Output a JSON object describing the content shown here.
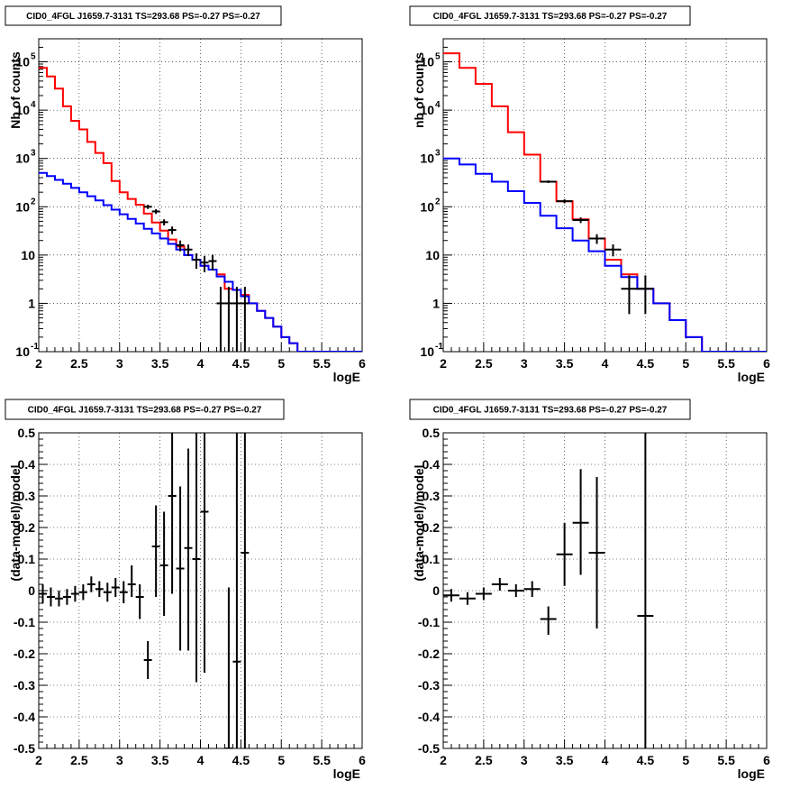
{
  "chart_data": [
    {
      "type": "step",
      "title": "CID0_4FGL J1659.7-3131 TS=293.68 PS=-0.27 PS=-0.27",
      "xlabel": "logE",
      "ylabel": "Nb of counts",
      "xlim": [
        2,
        6
      ],
      "ylim": [
        0.1,
        300000
      ],
      "yscale": "log",
      "grid": true,
      "x_ticks": [
        "2",
        "2.5",
        "3",
        "3.5",
        "4",
        "4.5",
        "5",
        "5.5",
        "6"
      ],
      "y_ticks": [
        {
          "base": "10",
          "exp": "5"
        },
        {
          "base": "10",
          "exp": "4"
        },
        {
          "base": "10",
          "exp": "3"
        },
        {
          "base": "10",
          "exp": "2"
        },
        {
          "base": "10",
          "exp": ""
        },
        {
          "base": "1",
          "exp": ""
        },
        {
          "base": "10",
          "exp": "-1"
        }
      ],
      "bin_edges": [
        2.0,
        2.1,
        2.2,
        2.3,
        2.4,
        2.5,
        2.6,
        2.7,
        2.8,
        2.9,
        3.0,
        3.1,
        3.2,
        3.3,
        3.4,
        3.5,
        3.6,
        3.7,
        3.8,
        3.9,
        4.0,
        4.1,
        4.2,
        4.3,
        4.4,
        4.5,
        4.6,
        4.7,
        4.8,
        4.9,
        5.0,
        5.1,
        5.2,
        5.3,
        5.4,
        5.5,
        5.6,
        5.7,
        5.8,
        5.9,
        6.0
      ],
      "series": [
        {
          "color": "#ff0000",
          "values": [
            75000,
            50000,
            28000,
            12000,
            6000,
            4000,
            2200,
            1300,
            800,
            340,
            200,
            145,
            110,
            72,
            47,
            32,
            21,
            15,
            10,
            8,
            6,
            5,
            4,
            2,
            1.9,
            1.5,
            1.0,
            0.7,
            0.5,
            0.33,
            0.2,
            0.15,
            0.1,
            0.1,
            0.1,
            0.1,
            0.1,
            0.1,
            0.1,
            0.1
          ]
        },
        {
          "color": "#0000ff",
          "values": [
            500,
            430,
            360,
            300,
            245,
            200,
            165,
            135,
            108,
            87,
            70,
            56,
            45,
            35,
            28,
            22,
            17,
            13,
            10,
            8,
            6,
            5,
            3.6,
            2.8,
            1.9,
            1.4,
            1.0,
            0.7,
            0.5,
            0.33,
            0.2,
            0.15,
            0.1,
            0.1,
            0.1,
            0.1,
            0.1,
            0.1,
            0.1,
            0.1
          ]
        }
      ],
      "points": [
        {
          "x": 3.35,
          "y": 100,
          "lo": 90,
          "hi": 110
        },
        {
          "x": 3.45,
          "y": 80,
          "lo": 71,
          "hi": 89
        },
        {
          "x": 3.55,
          "y": 48,
          "lo": 41,
          "hi": 55
        },
        {
          "x": 3.65,
          "y": 33,
          "lo": 27,
          "hi": 39
        },
        {
          "x": 3.75,
          "y": 16,
          "lo": 12,
          "hi": 20
        },
        {
          "x": 3.85,
          "y": 13,
          "lo": 9.5,
          "hi": 16.5
        },
        {
          "x": 3.95,
          "y": 8,
          "lo": 5.2,
          "hi": 10.8
        },
        {
          "x": 4.05,
          "y": 7,
          "lo": 4.4,
          "hi": 9.6
        },
        {
          "x": 4.15,
          "y": 7.5,
          "lo": 4.8,
          "hi": 10.2
        },
        {
          "x": 4.25,
          "y": 1,
          "lo": 0.05,
          "hi": 2.2
        },
        {
          "x": 4.35,
          "y": 1,
          "lo": 0.05,
          "hi": 2.2
        },
        {
          "x": 4.45,
          "y": 1,
          "lo": 0.05,
          "hi": 2.2
        },
        {
          "x": 4.55,
          "y": 1,
          "lo": 0.05,
          "hi": 2.2
        }
      ]
    },
    {
      "type": "step",
      "title": "CID0_4FGL J1659.7-3131 TS=293.68 PS=-0.27 PS=-0.27",
      "xlabel": "logE",
      "ylabel": "nb of counts",
      "xlim": [
        2,
        6
      ],
      "ylim": [
        0.1,
        300000
      ],
      "yscale": "log",
      "grid": true,
      "x_ticks": [
        "2",
        "2.5",
        "3",
        "3.5",
        "4",
        "4.5",
        "5",
        "5.5",
        "6"
      ],
      "y_ticks": [
        {
          "base": "10",
          "exp": "5"
        },
        {
          "base": "10",
          "exp": "4"
        },
        {
          "base": "10",
          "exp": "3"
        },
        {
          "base": "10",
          "exp": "2"
        },
        {
          "base": "10",
          "exp": ""
        },
        {
          "base": "1",
          "exp": ""
        },
        {
          "base": "10",
          "exp": "-1"
        }
      ],
      "bin_edges": [
        2.0,
        2.2,
        2.4,
        2.6,
        2.8,
        3.0,
        3.2,
        3.4,
        3.6,
        3.8,
        4.0,
        4.2,
        4.4,
        4.6,
        4.8,
        5.0,
        5.2,
        5.4,
        5.6,
        5.8,
        6.0
      ],
      "series": [
        {
          "color": "#ff0000",
          "values": [
            150000,
            75000,
            35000,
            12000,
            3500,
            1200,
            330,
            130,
            55,
            22,
            8,
            4,
            2,
            1.0,
            0.45,
            0.2,
            0.1,
            0.1,
            0.1,
            0.1
          ]
        },
        {
          "color": "#0000ff",
          "values": [
            1000,
            750,
            480,
            330,
            210,
            120,
            65,
            36,
            20,
            12,
            6,
            3.5,
            2,
            1.0,
            0.45,
            0.2,
            0.1,
            0.1,
            0.1,
            0.1
          ]
        }
      ],
      "points": [
        {
          "x": 3.3,
          "y": 330,
          "lo": 310,
          "hi": 350
        },
        {
          "x": 3.5,
          "y": 130,
          "lo": 118,
          "hi": 142
        },
        {
          "x": 3.7,
          "y": 53,
          "lo": 46,
          "hi": 60
        },
        {
          "x": 3.9,
          "y": 22,
          "lo": 17,
          "hi": 27
        },
        {
          "x": 4.1,
          "y": 13,
          "lo": 9.4,
          "hi": 16.6
        },
        {
          "x": 4.3,
          "y": 2,
          "lo": 0.6,
          "hi": 3.8
        },
        {
          "x": 4.5,
          "y": 2,
          "lo": 0.6,
          "hi": 3.8
        }
      ]
    },
    {
      "type": "errorbar",
      "title": "CID0_4FGL J1659.7-3131 TS=293.68 PS=-0.27 PS=-0.27",
      "xlabel": "logE",
      "ylabel": "(data-model)/model",
      "xlim": [
        2,
        6
      ],
      "ylim": [
        -0.5,
        0.5
      ],
      "grid": true,
      "x_ticks": [
        "2",
        "2.5",
        "3",
        "3.5",
        "4",
        "4.5",
        "5",
        "5.5",
        "6"
      ],
      "y_ticks": [
        "0.5",
        "0.4",
        "0.3",
        "0.2",
        "0.1",
        "0",
        "-0.1",
        "-0.2",
        "-0.3",
        "-0.4",
        "-0.5"
      ],
      "xerr": 0.05,
      "points": [
        {
          "x": 2.05,
          "y": -0.01,
          "lo": -0.04,
          "hi": 0.02
        },
        {
          "x": 2.15,
          "y": -0.02,
          "lo": -0.05,
          "hi": 0.01
        },
        {
          "x": 2.25,
          "y": -0.025,
          "lo": -0.05,
          "hi": 0.0
        },
        {
          "x": 2.35,
          "y": -0.02,
          "lo": -0.045,
          "hi": 0.005
        },
        {
          "x": 2.45,
          "y": -0.01,
          "lo": -0.035,
          "hi": 0.015
        },
        {
          "x": 2.55,
          "y": -0.005,
          "lo": -0.03,
          "hi": 0.02
        },
        {
          "x": 2.65,
          "y": 0.02,
          "lo": -0.005,
          "hi": 0.045
        },
        {
          "x": 2.75,
          "y": 0.005,
          "lo": -0.02,
          "hi": 0.03
        },
        {
          "x": 2.85,
          "y": -0.005,
          "lo": -0.035,
          "hi": 0.025
        },
        {
          "x": 2.95,
          "y": 0.01,
          "lo": -0.02,
          "hi": 0.04
        },
        {
          "x": 3.05,
          "y": -0.005,
          "lo": -0.04,
          "hi": 0.03
        },
        {
          "x": 3.15,
          "y": 0.02,
          "lo": -0.02,
          "hi": 0.08
        },
        {
          "x": 3.25,
          "y": -0.02,
          "lo": -0.09,
          "hi": 0.02
        },
        {
          "x": 3.35,
          "y": -0.22,
          "lo": -0.28,
          "hi": -0.16
        },
        {
          "x": 3.45,
          "y": 0.14,
          "lo": -0.02,
          "hi": 0.27
        },
        {
          "x": 3.55,
          "y": 0.08,
          "lo": -0.08,
          "hi": 0.25
        },
        {
          "x": 3.65,
          "y": 0.3,
          "lo": -0.01,
          "hi": 0.5
        },
        {
          "x": 3.75,
          "y": 0.07,
          "lo": -0.19,
          "hi": 0.33
        },
        {
          "x": 3.85,
          "y": 0.135,
          "lo": -0.19,
          "hi": 0.45
        },
        {
          "x": 3.95,
          "y": 0.1,
          "lo": -0.29,
          "hi": 0.5
        },
        {
          "x": 4.05,
          "y": 0.25,
          "lo": -0.26,
          "hi": 0.5
        },
        {
          "x": 4.35,
          "y": -0.5,
          "lo": -0.5,
          "hi": 0.01
        },
        {
          "x": 4.45,
          "y": -0.225,
          "lo": -0.5,
          "hi": 0.5
        },
        {
          "x": 4.55,
          "y": 0.12,
          "lo": -0.5,
          "hi": 0.5
        }
      ]
    },
    {
      "type": "errorbar",
      "title": "CID0_4FGL J1659.7-3131 TS=293.68 PS=-0.27 PS=-0.27",
      "xlabel": "logE",
      "ylabel": "(data-model)/model",
      "xlim": [
        2,
        6
      ],
      "ylim": [
        -0.5,
        0.5
      ],
      "grid": true,
      "x_ticks": [
        "2",
        "2.5",
        "3",
        "3.5",
        "4",
        "4.5",
        "5",
        "5.5",
        "6"
      ],
      "y_ticks": [
        "0.5",
        "0.4",
        "0.3",
        "0.2",
        "0.1",
        "0",
        "-0.1",
        "-0.2",
        "-0.3",
        "-0.4",
        "-0.5"
      ],
      "xerr": 0.1,
      "points": [
        {
          "x": 2.1,
          "y": -0.015,
          "lo": -0.035,
          "hi": 0.005
        },
        {
          "x": 2.3,
          "y": -0.025,
          "lo": -0.045,
          "hi": -0.005
        },
        {
          "x": 2.5,
          "y": -0.01,
          "lo": -0.03,
          "hi": 0.01
        },
        {
          "x": 2.7,
          "y": 0.02,
          "lo": 0.0,
          "hi": 0.04
        },
        {
          "x": 2.9,
          "y": 0.0,
          "lo": -0.02,
          "hi": 0.02
        },
        {
          "x": 3.1,
          "y": 0.005,
          "lo": -0.02,
          "hi": 0.03
        },
        {
          "x": 3.3,
          "y": -0.09,
          "lo": -0.14,
          "hi": -0.05
        },
        {
          "x": 3.5,
          "y": 0.115,
          "lo": 0.015,
          "hi": 0.215
        },
        {
          "x": 3.7,
          "y": 0.215,
          "lo": 0.05,
          "hi": 0.385
        },
        {
          "x": 3.9,
          "y": 0.12,
          "lo": -0.12,
          "hi": 0.36
        },
        {
          "x": 4.5,
          "y": -0.08,
          "lo": -0.5,
          "hi": 0.5
        }
      ]
    }
  ]
}
